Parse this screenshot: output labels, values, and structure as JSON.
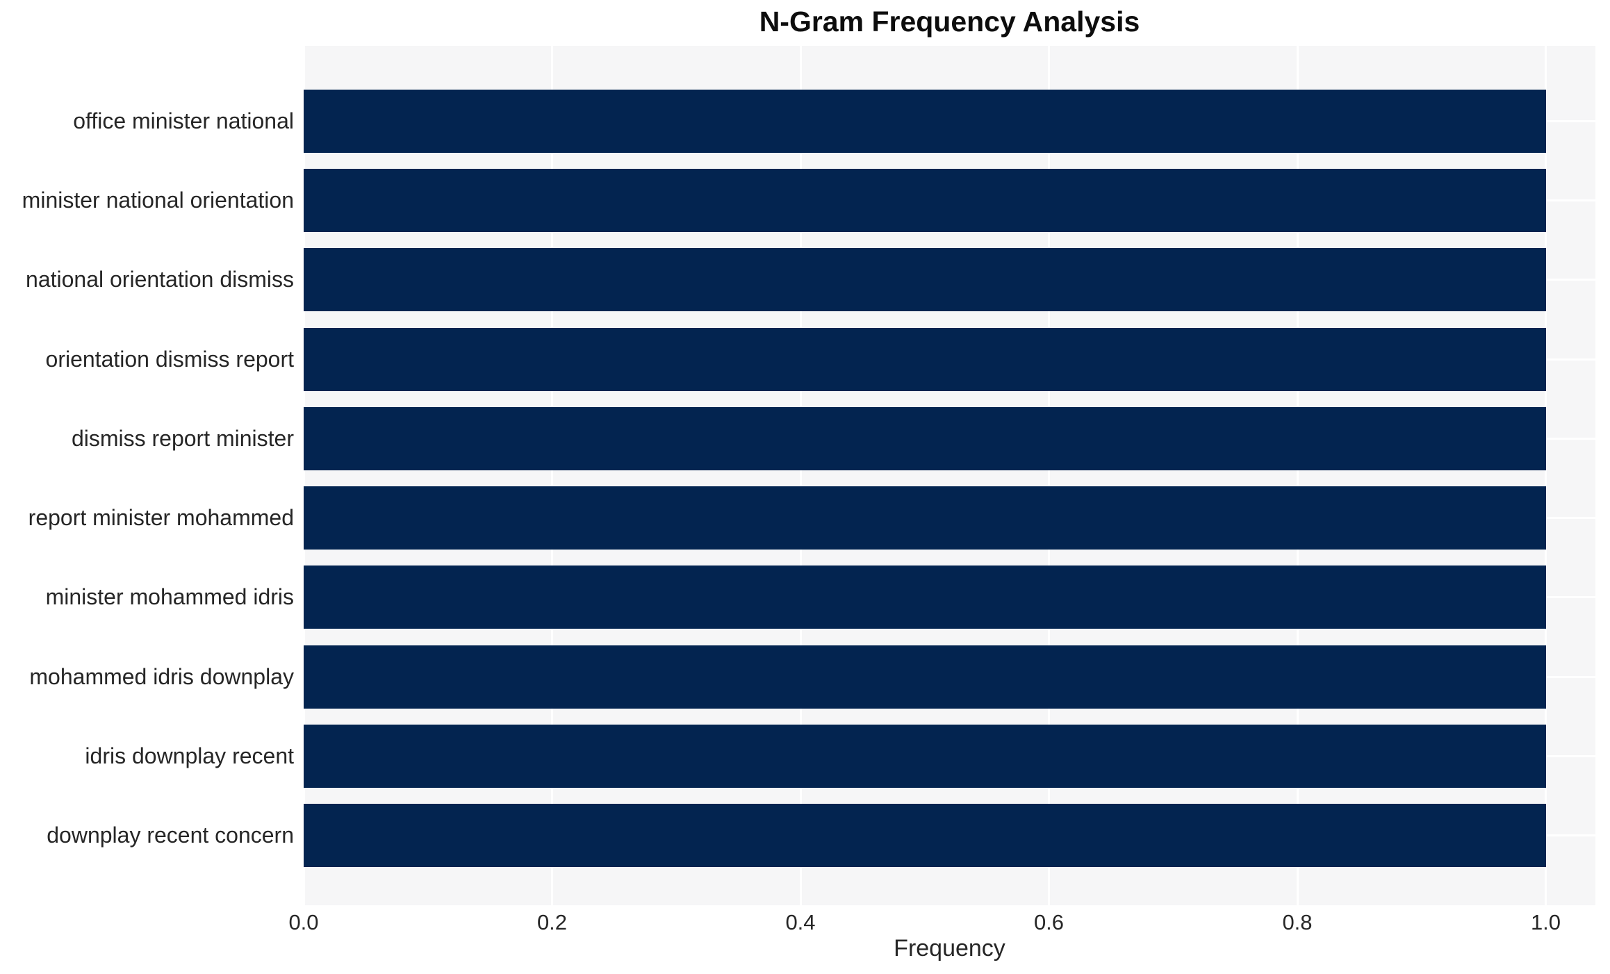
{
  "chart_data": {
    "type": "bar",
    "orientation": "horizontal",
    "title": "N-Gram Frequency Analysis",
    "xlabel": "Frequency",
    "ylabel": "",
    "categories": [
      "office minister national",
      "minister national orientation",
      "national orientation dismiss",
      "orientation dismiss report",
      "dismiss report minister",
      "report minister mohammed",
      "minister mohammed idris",
      "mohammed idris downplay",
      "idris downplay recent",
      "downplay recent concern"
    ],
    "values": [
      1.0,
      1.0,
      1.0,
      1.0,
      1.0,
      1.0,
      1.0,
      1.0,
      1.0,
      1.0
    ],
    "xlim": [
      0,
      1.04
    ],
    "xticks": [
      {
        "value": 0.0,
        "label": "0.0"
      },
      {
        "value": 0.2,
        "label": "0.2"
      },
      {
        "value": 0.4,
        "label": "0.4"
      },
      {
        "value": 0.6,
        "label": "0.6"
      },
      {
        "value": 0.8,
        "label": "0.8"
      },
      {
        "value": 1.0,
        "label": "1.0"
      }
    ],
    "grid": true,
    "legend": false
  },
  "style": {
    "bar_color": "#032450",
    "plot_bg": "#f6f6f7",
    "grid_color": "#ffffff",
    "text_color": "#262626",
    "title_color": "#0d0d0d",
    "page_bg": "#ffffff"
  }
}
